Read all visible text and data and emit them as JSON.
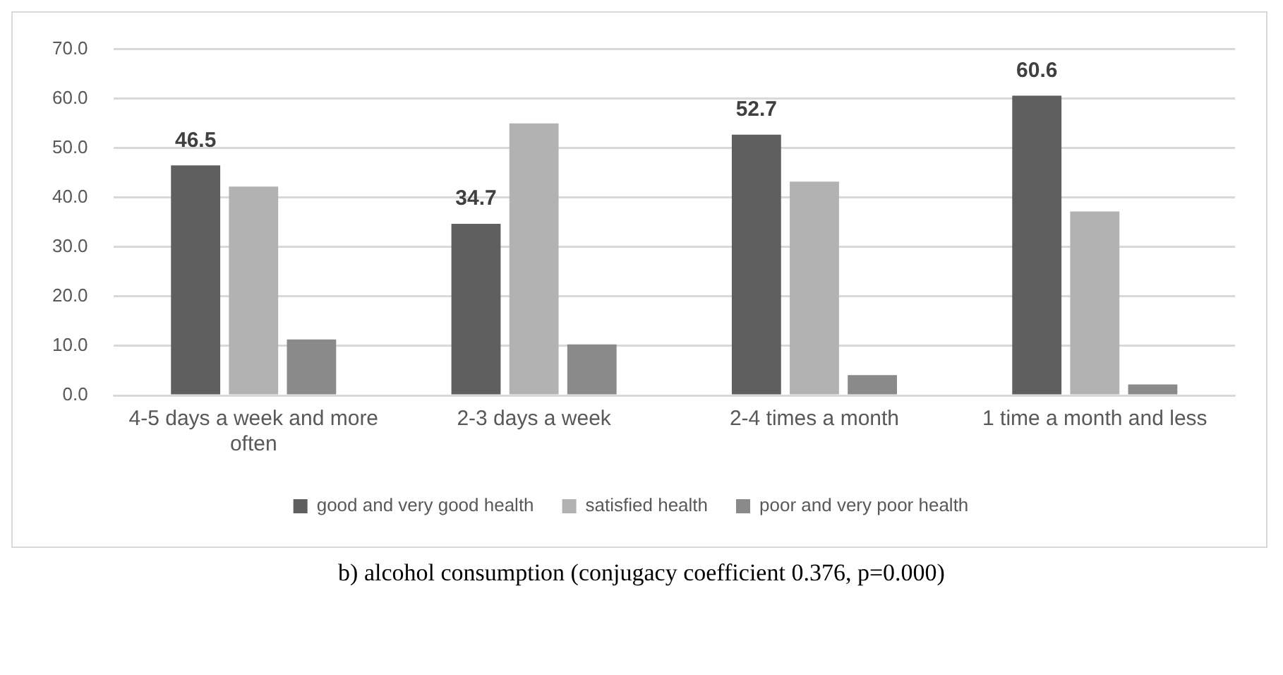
{
  "chart_data": {
    "type": "bar",
    "categories": [
      "4-5 days a week and more often",
      "2-3 days a week",
      "2-4 times a month",
      "1 time a month and less"
    ],
    "series": [
      {
        "name": "good and very good health",
        "color": "#5f5f5f",
        "values": [
          46.5,
          34.7,
          52.7,
          60.6
        ],
        "value_labels": [
          "46.5",
          "34.7",
          "52.7",
          "60.6"
        ]
      },
      {
        "name": "satisfied health",
        "color": "#b2b2b2",
        "values": [
          42.2,
          55.0,
          43.2,
          37.2
        ]
      },
      {
        "name": "poor and very poor health",
        "color": "#8a8a8a",
        "values": [
          11.3,
          10.3,
          4.1,
          2.2
        ]
      }
    ],
    "ylim": [
      0,
      70
    ],
    "yticks": [
      {
        "value": 0,
        "label": "0.0"
      },
      {
        "value": 10,
        "label": "10.0"
      },
      {
        "value": 20,
        "label": "20.0"
      },
      {
        "value": 30,
        "label": "30.0"
      },
      {
        "value": 40,
        "label": "40.0"
      },
      {
        "value": 50,
        "label": "50.0"
      },
      {
        "value": 60,
        "label": "60.0"
      },
      {
        "value": 70,
        "label": "70.0"
      }
    ],
    "grid": "y",
    "legend": "bottom",
    "annotations": [
      "b) alcohol consumption (conjugacy coefficient 0.376, p=0.000)"
    ]
  }
}
